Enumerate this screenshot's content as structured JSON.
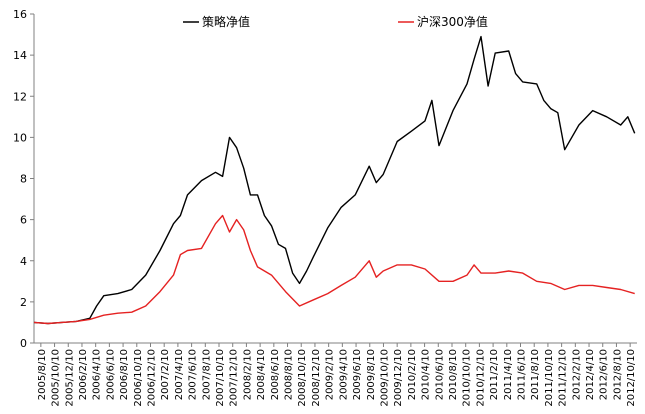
{
  "chart_data": {
    "type": "line",
    "title": "",
    "xlabel": "",
    "ylabel": "",
    "ylim": [
      0,
      16
    ],
    "yticks": [
      0,
      2,
      4,
      6,
      8,
      10,
      12,
      14,
      16
    ],
    "x_tick_labels": [
      "2005/8/10",
      "2005/10/10",
      "2005/12/10",
      "2006/2/10",
      "2006/4/10",
      "2006/6/10",
      "2006/8/10",
      "2006/10/10",
      "2006/12/10",
      "2007/2/10",
      "2007/4/10",
      "2007/6/10",
      "2007/8/10",
      "2007/10/10",
      "2007/12/10",
      "2008/2/10",
      "2008/4/10",
      "2008/6/10",
      "2008/8/10",
      "2008/10/10",
      "2008/12/10",
      "2009/2/10",
      "2009/4/10",
      "2009/6/10",
      "2009/8/10",
      "2009/10/10",
      "2009/12/10",
      "2010/2/10",
      "2010/4/10",
      "2010/6/10",
      "2010/8/10",
      "2010/10/10",
      "2010/12/10",
      "2011/2/10",
      "2011/4/10",
      "2011/6/10",
      "2011/8/10",
      "2011/10/10",
      "2011/12/10",
      "2012/2/10",
      "2012/4/10",
      "2012/6/10",
      "2012/8/10",
      "2012/10/10"
    ],
    "grid": false,
    "legend_position": "top",
    "series": [
      {
        "name": "策略净值",
        "color": "#000000",
        "x": [
          "2005/8/10",
          "2005/10/10",
          "2005/12/10",
          "2006/2/10",
          "2006/4/10",
          "2006/5/10",
          "2006/6/10",
          "2006/8/10",
          "2006/10/10",
          "2006/12/10",
          "2007/2/10",
          "2007/4/10",
          "2007/5/10",
          "2007/6/10",
          "2007/8/10",
          "2007/10/10",
          "2007/11/10",
          "2007/12/10",
          "2008/1/10",
          "2008/2/10",
          "2008/3/10",
          "2008/4/10",
          "2008/5/10",
          "2008/6/10",
          "2008/7/10",
          "2008/8/10",
          "2008/9/10",
          "2008/10/10",
          "2008/11/10",
          "2008/12/10",
          "2009/2/10",
          "2009/4/10",
          "2009/6/10",
          "2009/8/10",
          "2009/9/10",
          "2009/10/10",
          "2009/12/10",
          "2010/2/10",
          "2010/4/10",
          "2010/5/10",
          "2010/6/10",
          "2010/8/10",
          "2010/10/10",
          "2010/11/10",
          "2010/12/10",
          "2011/1/10",
          "2011/2/10",
          "2011/4/10",
          "2011/5/10",
          "2011/6/10",
          "2011/8/10",
          "2011/9/10",
          "2011/10/10",
          "2011/11/10",
          "2011/12/10",
          "2012/2/10",
          "2012/4/10",
          "2012/6/10",
          "2012/8/10",
          "2012/9/10",
          "2012/10/10"
        ],
        "values": [
          1.0,
          0.95,
          1.0,
          1.05,
          1.2,
          1.8,
          2.3,
          2.4,
          2.6,
          3.3,
          4.5,
          5.8,
          6.2,
          7.2,
          7.9,
          8.3,
          8.1,
          10.0,
          9.5,
          8.5,
          7.2,
          7.2,
          6.2,
          5.7,
          4.8,
          4.6,
          3.4,
          2.9,
          3.5,
          4.2,
          5.6,
          6.6,
          7.2,
          8.6,
          7.8,
          8.2,
          9.8,
          10.3,
          10.8,
          11.8,
          9.6,
          11.3,
          12.6,
          13.8,
          14.9,
          12.5,
          14.1,
          14.2,
          13.1,
          12.7,
          12.6,
          11.8,
          11.4,
          11.2,
          9.4,
          10.6,
          11.3,
          11.0,
          10.6,
          11.0,
          10.2
        ]
      },
      {
        "name": "沪深300净值",
        "color": "#e52222",
        "x": [
          "2005/8/10",
          "2005/10/10",
          "2005/12/10",
          "2006/2/10",
          "2006/4/10",
          "2006/6/10",
          "2006/8/10",
          "2006/10/10",
          "2006/12/10",
          "2007/2/10",
          "2007/4/10",
          "2007/5/10",
          "2007/6/10",
          "2007/8/10",
          "2007/10/10",
          "2007/11/10",
          "2007/12/10",
          "2008/1/10",
          "2008/2/10",
          "2008/3/10",
          "2008/4/10",
          "2008/6/10",
          "2008/8/10",
          "2008/10/10",
          "2008/12/10",
          "2009/2/10",
          "2009/4/10",
          "2009/6/10",
          "2009/8/10",
          "2009/9/10",
          "2009/10/10",
          "2009/12/10",
          "2010/2/10",
          "2010/4/10",
          "2010/6/10",
          "2010/8/10",
          "2010/10/10",
          "2010/11/10",
          "2010/12/10",
          "2011/2/10",
          "2011/4/10",
          "2011/6/10",
          "2011/8/10",
          "2011/10/10",
          "2011/12/10",
          "2012/2/10",
          "2012/4/10",
          "2012/6/10",
          "2012/8/10",
          "2012/10/10"
        ],
        "values": [
          1.0,
          0.95,
          1.0,
          1.05,
          1.15,
          1.35,
          1.45,
          1.5,
          1.8,
          2.5,
          3.3,
          4.3,
          4.5,
          4.6,
          5.8,
          6.2,
          5.4,
          6.0,
          5.5,
          4.5,
          3.7,
          3.3,
          2.5,
          1.8,
          2.1,
          2.4,
          2.8,
          3.2,
          4.0,
          3.2,
          3.5,
          3.8,
          3.8,
          3.6,
          3.0,
          3.0,
          3.3,
          3.8,
          3.4,
          3.4,
          3.5,
          3.4,
          3.0,
          2.9,
          2.6,
          2.8,
          2.8,
          2.7,
          2.6,
          2.4
        ]
      }
    ]
  }
}
